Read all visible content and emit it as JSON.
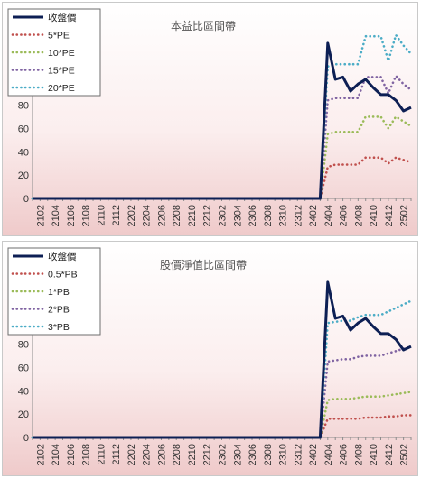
{
  "chart_data": [
    {
      "type": "line",
      "title": "本益比區間帶",
      "xlabel": "",
      "ylabel": "",
      "ylim": [
        0,
        160
      ],
      "yticks": [
        0,
        20,
        40,
        60,
        80,
        100,
        120,
        140,
        160
      ],
      "x": [
        "2101",
        "2102",
        "2103",
        "2104",
        "2105",
        "2106",
        "2107",
        "2108",
        "2109",
        "2110",
        "2111",
        "2112",
        "2201",
        "2202",
        "2203",
        "2204",
        "2205",
        "2206",
        "2207",
        "2208",
        "2209",
        "2210",
        "2211",
        "2212",
        "2301",
        "2302",
        "2303",
        "2304",
        "2305",
        "2306",
        "2307",
        "2308",
        "2309",
        "2310",
        "2311",
        "2312",
        "2401",
        "2402",
        "2403",
        "2404",
        "2405",
        "2406",
        "2407",
        "2408",
        "2409",
        "2410",
        "2411",
        "2412",
        "2501",
        "2502",
        "2503"
      ],
      "xtick_labels": [
        "2102",
        "2104",
        "2106",
        "2108",
        "2110",
        "2112",
        "2202",
        "2204",
        "2206",
        "2208",
        "2210",
        "2212",
        "2302",
        "2304",
        "2306",
        "2308",
        "2310",
        "2312",
        "2402",
        "2404",
        "2406",
        "2408",
        "2410",
        "2412",
        "2502"
      ],
      "legend_position": "top-left",
      "series": [
        {
          "name": "收盤價",
          "color": "#0d1f54",
          "style": "solid",
          "values": [
            0,
            0,
            0,
            0,
            0,
            0,
            0,
            0,
            0,
            0,
            0,
            0,
            0,
            0,
            0,
            0,
            0,
            0,
            0,
            0,
            0,
            0,
            0,
            0,
            0,
            0,
            0,
            0,
            0,
            0,
            0,
            0,
            0,
            0,
            0,
            0,
            0,
            0,
            0,
            133,
            102,
            104,
            92,
            98,
            102,
            95,
            89,
            89,
            84,
            75,
            78
          ]
        },
        {
          "name": "5*PE",
          "color": "#c0504d",
          "style": "dotted",
          "values": [
            0,
            0,
            0,
            0,
            0,
            0,
            0,
            0,
            0,
            0,
            0,
            0,
            0,
            0,
            0,
            0,
            0,
            0,
            0,
            0,
            0,
            0,
            0,
            0,
            0,
            0,
            0,
            0,
            0,
            0,
            0,
            0,
            0,
            0,
            0,
            0,
            0,
            0,
            0,
            27,
            29,
            29,
            29,
            29,
            35,
            35,
            35,
            30,
            35,
            33,
            31
          ]
        },
        {
          "name": "10*PE",
          "color": "#9bbb59",
          "style": "dotted",
          "values": [
            0,
            0,
            0,
            0,
            0,
            0,
            0,
            0,
            0,
            0,
            0,
            0,
            0,
            0,
            0,
            0,
            0,
            0,
            0,
            0,
            0,
            0,
            0,
            0,
            0,
            0,
            0,
            0,
            0,
            0,
            0,
            0,
            0,
            0,
            0,
            0,
            0,
            0,
            0,
            55,
            57,
            57,
            57,
            57,
            70,
            70,
            70,
            60,
            70,
            66,
            62
          ]
        },
        {
          "name": "15*PE",
          "color": "#8064a2",
          "style": "dotted",
          "values": [
            0,
            0,
            0,
            0,
            0,
            0,
            0,
            0,
            0,
            0,
            0,
            0,
            0,
            0,
            0,
            0,
            0,
            0,
            0,
            0,
            0,
            0,
            0,
            0,
            0,
            0,
            0,
            0,
            0,
            0,
            0,
            0,
            0,
            0,
            0,
            0,
            0,
            0,
            0,
            84,
            86,
            86,
            86,
            86,
            104,
            104,
            104,
            90,
            105,
            98,
            93
          ]
        },
        {
          "name": "20*PE",
          "color": "#4bacc6",
          "style": "dotted",
          "values": [
            0,
            0,
            0,
            0,
            0,
            0,
            0,
            0,
            0,
            0,
            0,
            0,
            0,
            0,
            0,
            0,
            0,
            0,
            0,
            0,
            0,
            0,
            0,
            0,
            0,
            0,
            0,
            0,
            0,
            0,
            0,
            0,
            0,
            0,
            0,
            0,
            0,
            0,
            0,
            113,
            115,
            115,
            115,
            115,
            139,
            139,
            139,
            118,
            140,
            131,
            124
          ]
        }
      ]
    },
    {
      "type": "line",
      "title": "股價淨值比區間帶",
      "xlabel": "",
      "ylabel": "",
      "ylim": [
        0,
        160
      ],
      "yticks": [
        0,
        20,
        40,
        60,
        80,
        100,
        120,
        140,
        160
      ],
      "x": [
        "2101",
        "2102",
        "2103",
        "2104",
        "2105",
        "2106",
        "2107",
        "2108",
        "2109",
        "2110",
        "2111",
        "2112",
        "2201",
        "2202",
        "2203",
        "2204",
        "2205",
        "2206",
        "2207",
        "2208",
        "2209",
        "2210",
        "2211",
        "2212",
        "2301",
        "2302",
        "2303",
        "2304",
        "2305",
        "2306",
        "2307",
        "2308",
        "2309",
        "2310",
        "2311",
        "2312",
        "2401",
        "2402",
        "2403",
        "2404",
        "2405",
        "2406",
        "2407",
        "2408",
        "2409",
        "2410",
        "2411",
        "2412",
        "2501",
        "2502",
        "2503"
      ],
      "xtick_labels": [
        "2102",
        "2104",
        "2106",
        "2108",
        "2110",
        "2112",
        "2202",
        "2204",
        "2206",
        "2208",
        "2210",
        "2212",
        "2302",
        "2304",
        "2306",
        "2308",
        "2310",
        "2312",
        "2402",
        "2404",
        "2406",
        "2408",
        "2410",
        "2412",
        "2502"
      ],
      "legend_position": "top-left",
      "series": [
        {
          "name": "收盤價",
          "color": "#0d1f54",
          "style": "solid",
          "values": [
            0,
            0,
            0,
            0,
            0,
            0,
            0,
            0,
            0,
            0,
            0,
            0,
            0,
            0,
            0,
            0,
            0,
            0,
            0,
            0,
            0,
            0,
            0,
            0,
            0,
            0,
            0,
            0,
            0,
            0,
            0,
            0,
            0,
            0,
            0,
            0,
            0,
            0,
            0,
            133,
            102,
            104,
            92,
            98,
            102,
            95,
            89,
            89,
            84,
            75,
            78
          ]
        },
        {
          "name": "0.5*PB",
          "color": "#c0504d",
          "style": "dotted",
          "values": [
            0,
            0,
            0,
            0,
            0,
            0,
            0,
            0,
            0,
            0,
            0,
            0,
            0,
            0,
            0,
            0,
            0,
            0,
            0,
            0,
            0,
            0,
            0,
            0,
            0,
            0,
            0,
            0,
            0,
            0,
            0,
            0,
            0,
            0,
            0,
            0,
            0,
            0,
            0,
            16,
            16,
            16,
            16,
            16,
            17,
            17,
            17,
            18,
            18,
            19,
            19
          ]
        },
        {
          "name": "1*PB",
          "color": "#9bbb59",
          "style": "dotted",
          "values": [
            0,
            0,
            0,
            0,
            0,
            0,
            0,
            0,
            0,
            0,
            0,
            0,
            0,
            0,
            0,
            0,
            0,
            0,
            0,
            0,
            0,
            0,
            0,
            0,
            0,
            0,
            0,
            0,
            0,
            0,
            0,
            0,
            0,
            0,
            0,
            0,
            0,
            0,
            0,
            32,
            33,
            33,
            33,
            34,
            35,
            35,
            35,
            36,
            37,
            38,
            39
          ]
        },
        {
          "name": "2*PB",
          "color": "#8064a2",
          "style": "dotted",
          "values": [
            0,
            0,
            0,
            0,
            0,
            0,
            0,
            0,
            0,
            0,
            0,
            0,
            0,
            0,
            0,
            0,
            0,
            0,
            0,
            0,
            0,
            0,
            0,
            0,
            0,
            0,
            0,
            0,
            0,
            0,
            0,
            0,
            0,
            0,
            0,
            0,
            0,
            0,
            0,
            65,
            66,
            67,
            67,
            69,
            70,
            70,
            70,
            72,
            74,
            76,
            78
          ]
        },
        {
          "name": "3*PB",
          "color": "#4bacc6",
          "style": "dotted",
          "values": [
            0,
            0,
            0,
            0,
            0,
            0,
            0,
            0,
            0,
            0,
            0,
            0,
            0,
            0,
            0,
            0,
            0,
            0,
            0,
            0,
            0,
            0,
            0,
            0,
            0,
            0,
            0,
            0,
            0,
            0,
            0,
            0,
            0,
            0,
            0,
            0,
            0,
            0,
            0,
            98,
            99,
            100,
            100,
            103,
            105,
            105,
            105,
            108,
            111,
            114,
            117
          ]
        }
      ]
    }
  ]
}
